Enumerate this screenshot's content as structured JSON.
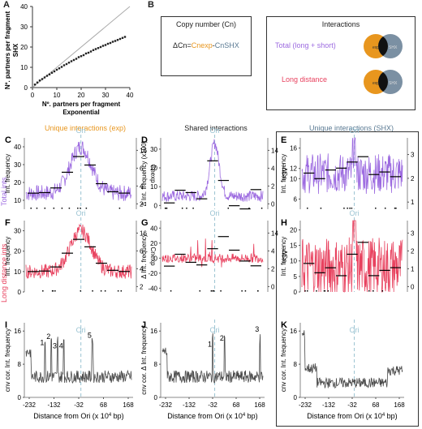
{
  "colors": {
    "purple": "#9c6ae0",
    "pink": "#e8425f",
    "gray": "#4a4a4a",
    "orange": "#e8961e",
    "ori": "#9ac3d2",
    "slate": "#5a7a93"
  },
  "panelA": {
    "label": "A",
    "ylabel_line1": "Nº. partners per fragment",
    "ylabel_line2": "SHX",
    "xlabel_line1": "Nº. partners per fragment",
    "xlabel_line2": "Exponential",
    "xticks": [
      "0",
      "10",
      "20",
      "30",
      "40"
    ],
    "yticks": [
      "0",
      "10",
      "20",
      "30",
      "40"
    ]
  },
  "panelB": {
    "label": "B",
    "copy_title": "Copy number (Cn)",
    "formula_prefix": "ΔCn=",
    "formula_exp": "Cnexp",
    "formula_sep": "-",
    "formula_shx": "CnSHX",
    "interactions_title": "Interactions",
    "total_label": "Total (long + short)",
    "long_label": "Long distance",
    "venn_left": "exp",
    "venn_right": "SHX"
  },
  "col_headers": {
    "left": "Unique interactions (exp)",
    "middle": "Shared interactions",
    "right": "Unique interactions (SHX)"
  },
  "row_headers": {
    "top": "Total ints",
    "middle": "Long distance ints"
  },
  "ori_label": "Ori",
  "x_axis_title": "Distance from Ori (x 10",
  "x_axis_sup": "4",
  "x_axis_end": " bp)",
  "x_ticks": [
    "-232",
    "-132",
    "-32",
    "68",
    "168"
  ],
  "panels": {
    "C": {
      "label": "C",
      "ylabel": "Int. frequency",
      "yticks": [
        "10",
        "20",
        "30",
        "40"
      ],
      "rlabel": "Cnexp",
      "rticks": [
        "2",
        "4",
        "6",
        "16"
      ]
    },
    "D": {
      "label": "D",
      "ylabel": "Δ Int. frequency (x100)",
      "yticks": [
        "0",
        "10",
        "20",
        "30"
      ],
      "rlabel": "ΔCn",
      "rticks": [
        "0",
        "2",
        "4",
        "14"
      ]
    },
    "E": {
      "label": "E",
      "ylabel": "Int. frequency",
      "yticks": [
        "6",
        "10",
        "12",
        "16"
      ],
      "rlabel": "CnSHX",
      "rticks": [
        "1",
        "2",
        "3"
      ]
    },
    "F": {
      "label": "F",
      "ylabel": "Int. frequency",
      "yticks": [
        "0",
        "10",
        "20",
        "30"
      ],
      "rlabel": "Cnexp",
      "rticks": [
        "2",
        "4",
        "6",
        "16"
      ]
    },
    "G": {
      "label": "G",
      "ylabel": "Δ Int. frequency",
      "yticks": [
        "-40",
        "-20",
        "0",
        "20",
        "40"
      ],
      "rlabel": "ΔCn",
      "rticks": [
        "0",
        "2",
        "4",
        "14"
      ]
    },
    "H": {
      "label": "H",
      "ylabel": "Int. frequency",
      "yticks": [
        "0",
        "5",
        "10",
        "15",
        "20"
      ],
      "rlabel": "CnSHX",
      "rticks": [
        "0",
        "1",
        "2",
        "3"
      ]
    },
    "I": {
      "label": "I",
      "ylabel": "cnv cor. Int. frequency",
      "yticks": [
        "0",
        "8",
        "16"
      ],
      "peaks": [
        "1",
        "2",
        "3",
        "4",
        "5"
      ]
    },
    "J": {
      "label": "J",
      "ylabel": "cnv cor. Δ Int. frequency",
      "yticks": [
        "0",
        "8",
        "16"
      ],
      "peaks": [
        "1",
        "2",
        "3"
      ]
    },
    "K": {
      "label": "K",
      "ylabel": "cnv cor. Int. frequency",
      "yticks": [
        "0",
        "8",
        "16"
      ]
    }
  },
  "chart_data": [
    {
      "panel": "A",
      "type": "scatter",
      "xlabel": "Nº. partners per fragment Exponential",
      "ylabel": "Nº. partners per fragment SHX",
      "xlim": [
        0,
        40
      ],
      "ylim": [
        0,
        40
      ],
      "x": [
        1,
        2,
        3,
        4,
        5,
        6,
        7,
        8,
        9,
        10,
        11,
        12,
        13,
        14,
        15,
        16,
        17,
        18,
        19,
        20,
        21,
        22,
        23,
        24,
        25,
        26,
        27,
        28,
        29,
        30,
        31,
        32,
        33,
        34,
        35,
        36,
        37,
        38
      ],
      "y": [
        1.5,
        2.5,
        3.5,
        4.2,
        5,
        5.8,
        6.5,
        7.3,
        8,
        8.8,
        9.5,
        10.2,
        11,
        11.6,
        12.3,
        13,
        13.6,
        14.2,
        15,
        15.5,
        16,
        16.8,
        17.2,
        17.8,
        18.5,
        19,
        19.5,
        20,
        20.6,
        21,
        21.6,
        22,
        22.6,
        23,
        23.5,
        24,
        24.5,
        25
      ]
    },
    {
      "panel": "C",
      "type": "line",
      "peak_value": 40,
      "baseline": 14,
      "ylim": [
        5,
        45
      ]
    },
    {
      "panel": "D",
      "type": "line",
      "peak_value": 33,
      "baseline": 5,
      "ylim": [
        -2,
        36
      ]
    },
    {
      "panel": "E",
      "type": "line",
      "peak_value": 16,
      "baseline": 11,
      "ylim": [
        4,
        18
      ]
    },
    {
      "panel": "F",
      "type": "line",
      "peak_value": 30,
      "baseline": 10,
      "ylim": [
        0,
        35
      ]
    },
    {
      "panel": "G",
      "type": "line",
      "peak_value": 45,
      "baseline": 0,
      "ylim": [
        -45,
        50
      ]
    },
    {
      "panel": "H",
      "type": "line",
      "peak_value": 20,
      "baseline": 8,
      "ylim": [
        0,
        23
      ]
    },
    {
      "panel": "I",
      "type": "line",
      "xlim": [
        -232,
        218
      ],
      "ylim": [
        0,
        18
      ],
      "baseline": 5
    },
    {
      "panel": "J",
      "type": "line",
      "xlim": [
        -232,
        218
      ],
      "ylim": [
        0,
        18
      ],
      "baseline": 5
    },
    {
      "panel": "K",
      "type": "line",
      "xlim": [
        -232,
        218
      ],
      "ylim": [
        0,
        18
      ],
      "baseline": 4
    }
  ]
}
